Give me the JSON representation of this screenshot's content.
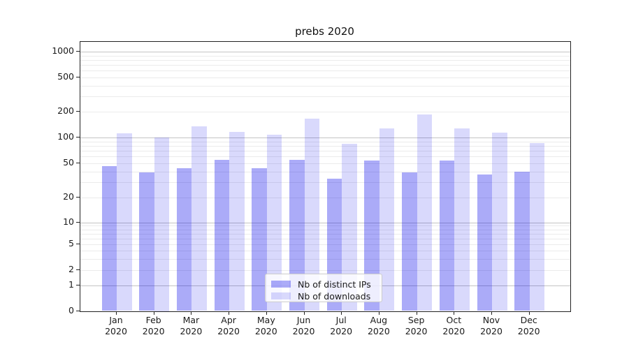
{
  "title": "prebs 2020",
  "legend": {
    "items": [
      {
        "label": "Nb of distinct IPs",
        "color": "rgba(0,0,235,0.33)"
      },
      {
        "label": "Nb of downloads",
        "color": "rgba(0,0,235,0.15)"
      }
    ]
  },
  "chart_data": {
    "type": "bar",
    "title": "prebs 2020",
    "categories": [
      "Jan 2020",
      "Feb 2020",
      "Mar 2020",
      "Apr 2020",
      "May 2020",
      "Jun 2020",
      "Jul 2020",
      "Aug 2020",
      "Sep 2020",
      "Oct 2020",
      "Nov 2020",
      "Dec 2020"
    ],
    "series": [
      {
        "name": "Nb of distinct IPs",
        "color": "rgba(0,0,235,0.33)",
        "values": [
          46,
          39,
          44,
          55,
          44,
          55,
          33,
          54,
          39,
          54,
          37,
          40
        ]
      },
      {
        "name": "Nb of downloads",
        "color": "rgba(0,0,235,0.15)",
        "values": [
          111,
          100,
          135,
          117,
          108,
          165,
          85,
          127,
          185,
          127,
          113,
          86
        ]
      }
    ],
    "xlabel": "",
    "ylabel": "",
    "yscale": "log-with-zero",
    "yticks": [
      0,
      1,
      2,
      5,
      10,
      20,
      50,
      100,
      200,
      500,
      1000
    ],
    "ylim": [
      0,
      1400
    ],
    "grid": "both",
    "legend_position": "lower-center"
  }
}
